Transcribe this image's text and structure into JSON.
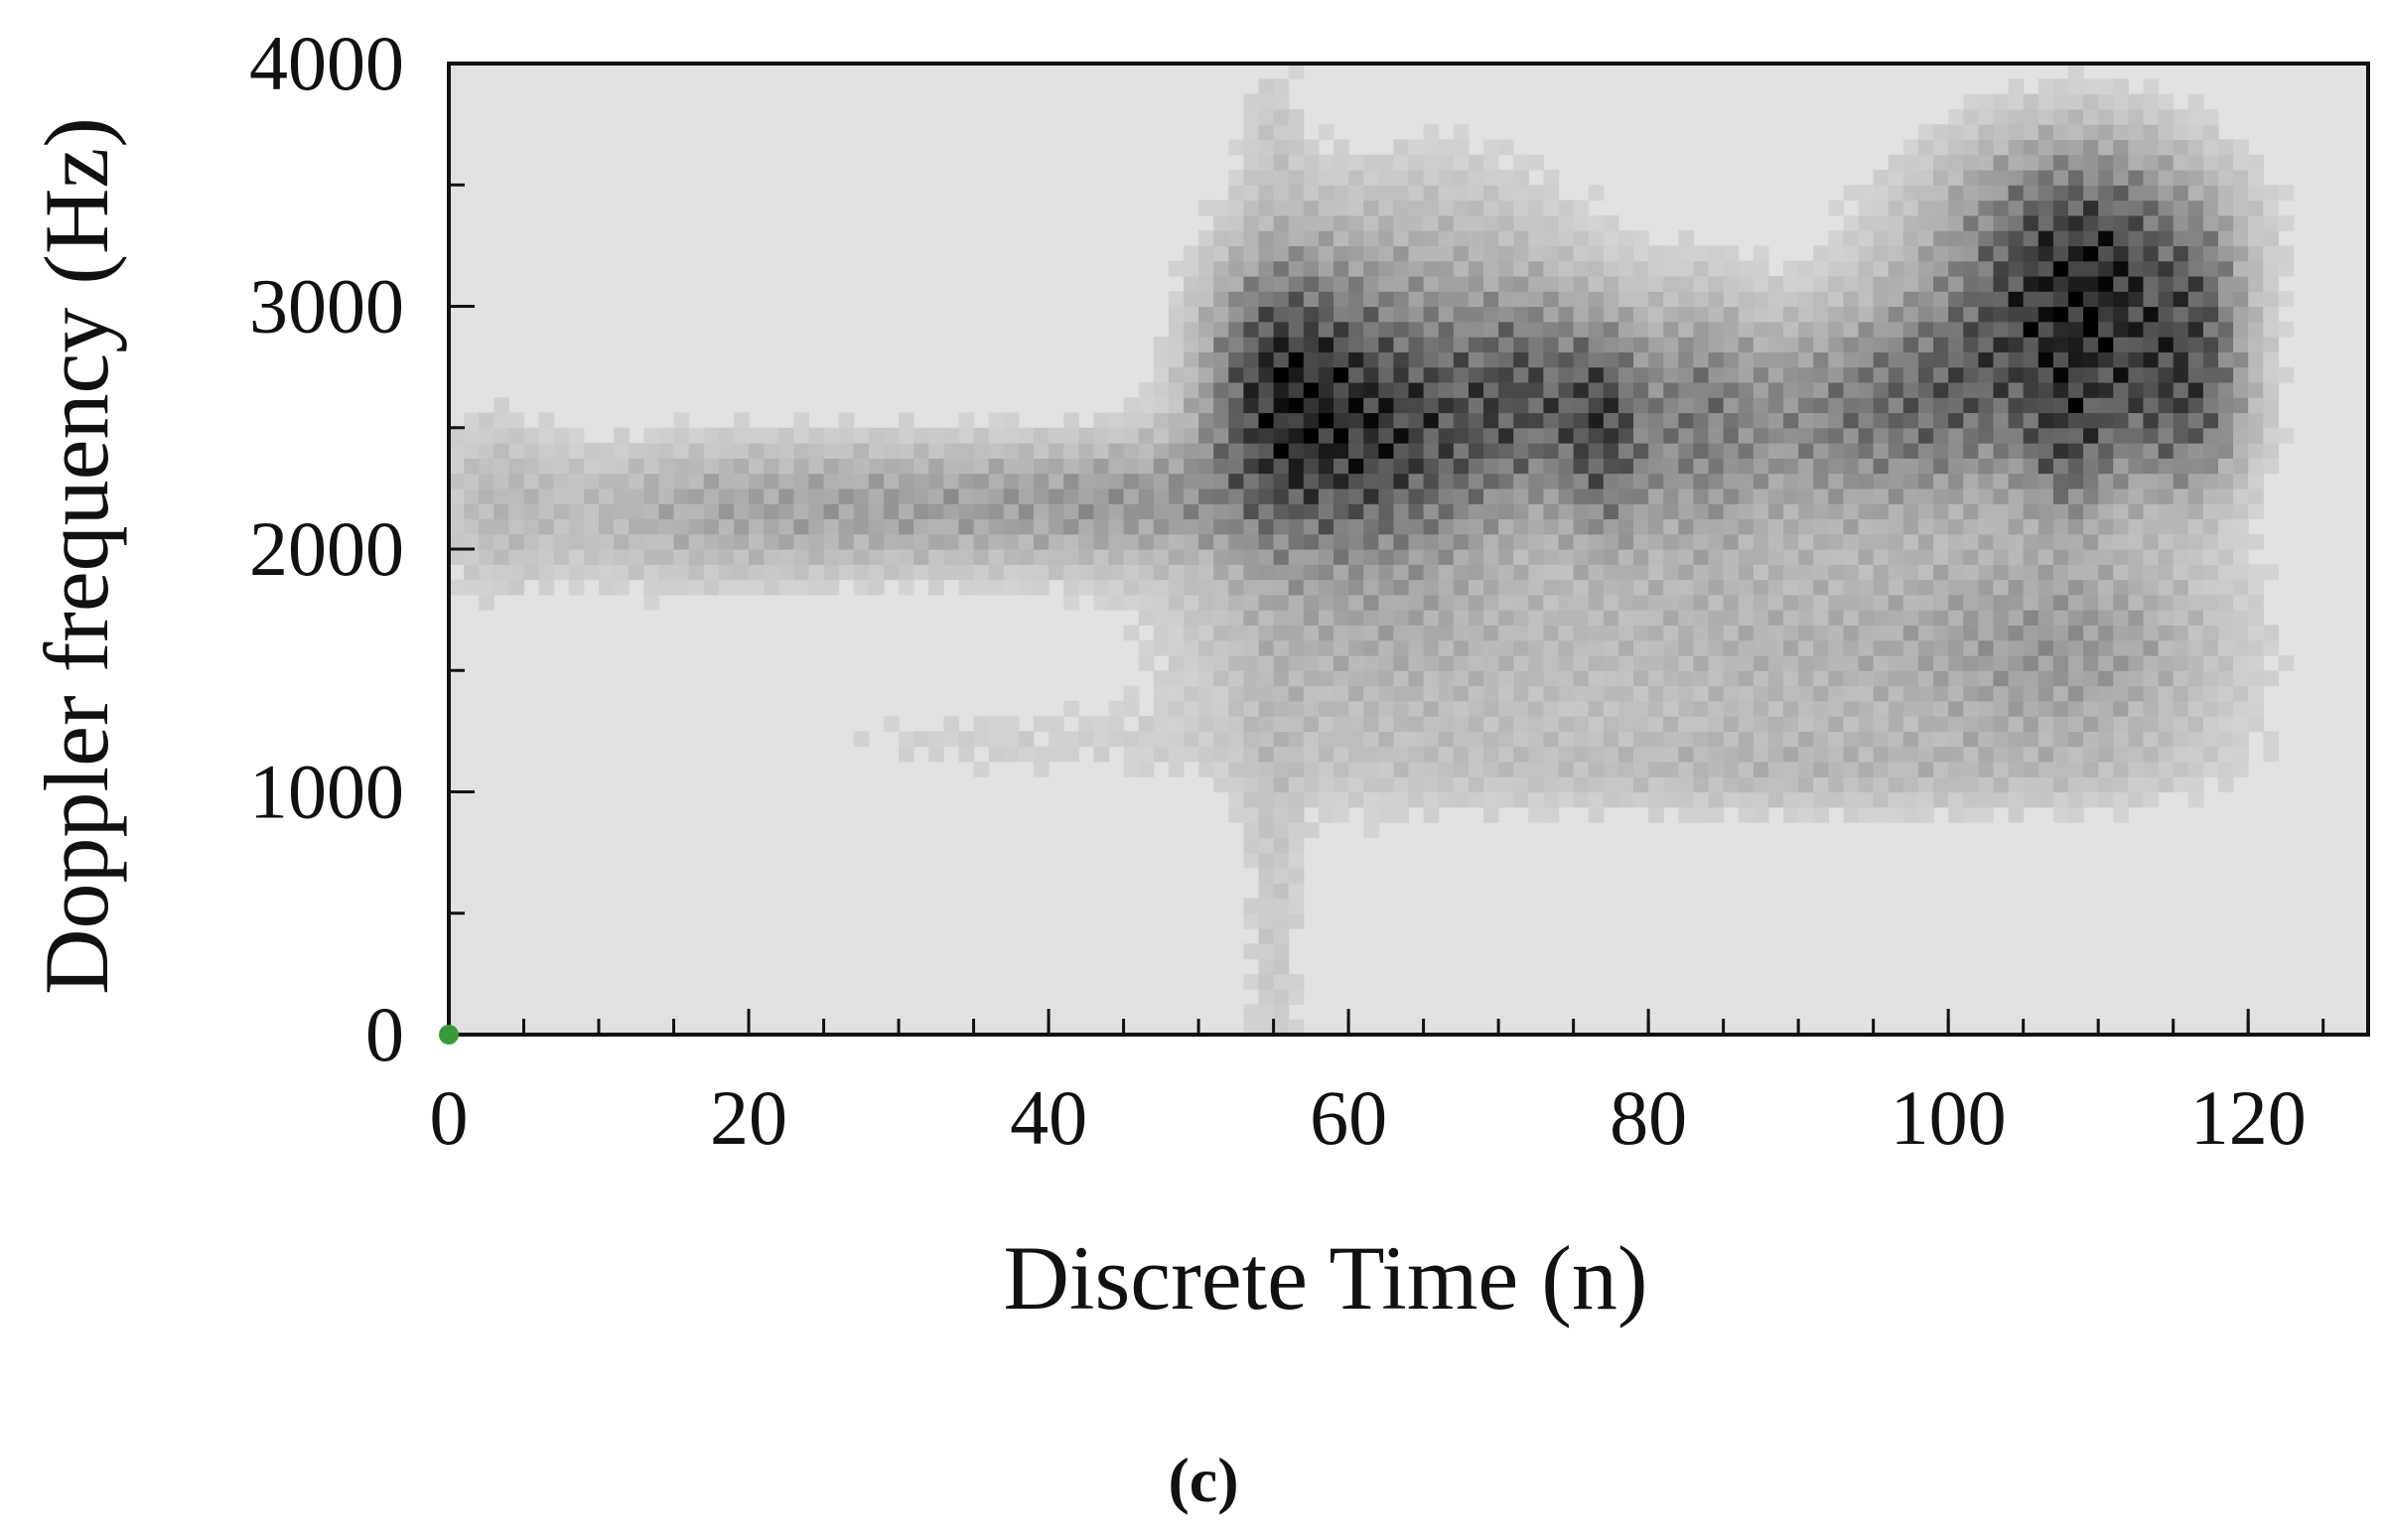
{
  "chart_data": {
    "type": "heatmap",
    "xlabel": "Discrete Time (n)",
    "ylabel": "Doppler frequency (Hz)",
    "caption": "(c)",
    "xlim": [
      0,
      128
    ],
    "ylim": [
      0,
      4000
    ],
    "x_ticks": [
      0,
      20,
      40,
      60,
      80,
      100,
      120
    ],
    "y_ticks": [
      0,
      1000,
      2000,
      3000,
      4000
    ],
    "x_minor_tick_step": 5,
    "y_minor_tick_step": 500,
    "grid": false,
    "colormap": "gray_reversed",
    "background_color": "#e1e1e1",
    "marker": {
      "x": 0,
      "y": 0,
      "color": "#3a9a3a"
    },
    "blobs": [
      {
        "x": 3,
        "y": 2200,
        "sx": 3,
        "sy": 300,
        "intensity": 0.18
      },
      {
        "x": 14,
        "y": 2150,
        "sx": 7,
        "sy": 220,
        "intensity": 0.22
      },
      {
        "x": 26,
        "y": 2180,
        "sx": 8,
        "sy": 200,
        "intensity": 0.25
      },
      {
        "x": 38,
        "y": 2180,
        "sx": 8,
        "sy": 190,
        "intensity": 0.25
      },
      {
        "x": 47,
        "y": 2220,
        "sx": 6,
        "sy": 180,
        "intensity": 0.22
      },
      {
        "x": 55,
        "y": 2700,
        "sx": 3,
        "sy": 350,
        "intensity": 0.55
      },
      {
        "x": 58,
        "y": 2550,
        "sx": 5,
        "sy": 380,
        "intensity": 0.6
      },
      {
        "x": 65,
        "y": 2500,
        "sx": 5,
        "sy": 320,
        "intensity": 0.62
      },
      {
        "x": 72,
        "y": 2650,
        "sx": 3,
        "sy": 280,
        "intensity": 0.55
      },
      {
        "x": 77,
        "y": 2500,
        "sx": 2,
        "sy": 300,
        "intensity": 0.72
      },
      {
        "x": 83,
        "y": 2550,
        "sx": 3,
        "sy": 350,
        "intensity": 0.5
      },
      {
        "x": 92,
        "y": 2550,
        "sx": 5,
        "sy": 300,
        "intensity": 0.5
      },
      {
        "x": 100,
        "y": 2650,
        "sx": 4,
        "sy": 300,
        "intensity": 0.5
      },
      {
        "x": 109,
        "y": 2950,
        "sx": 5,
        "sy": 380,
        "intensity": 1.0
      },
      {
        "x": 108,
        "y": 2400,
        "sx": 2,
        "sy": 200,
        "intensity": 0.45
      },
      {
        "x": 116,
        "y": 2550,
        "sx": 3,
        "sy": 250,
        "intensity": 0.55
      },
      {
        "x": 117,
        "y": 3000,
        "sx": 2,
        "sy": 250,
        "intensity": 0.35
      },
      {
        "x": 62,
        "y": 1650,
        "sx": 10,
        "sy": 450,
        "intensity": 0.28
      },
      {
        "x": 88,
        "y": 1600,
        "sx": 10,
        "sy": 400,
        "intensity": 0.25
      },
      {
        "x": 108,
        "y": 1600,
        "sx": 8,
        "sy": 350,
        "intensity": 0.4
      },
      {
        "x": 65,
        "y": 3200,
        "sx": 8,
        "sy": 350,
        "intensity": 0.22
      },
      {
        "x": 108,
        "y": 3350,
        "sx": 8,
        "sy": 300,
        "intensity": 0.35
      },
      {
        "x": 55,
        "y": 400,
        "sx": 1.5,
        "sy": 800,
        "intensity": 0.14
      },
      {
        "x": 55,
        "y": 3750,
        "sx": 1.5,
        "sy": 250,
        "intensity": 0.12
      },
      {
        "x": 35,
        "y": 1200,
        "sx": 10,
        "sy": 120,
        "intensity": 0.1
      },
      {
        "x": 90,
        "y": 1100,
        "sx": 18,
        "sy": 120,
        "intensity": 0.14
      }
    ]
  }
}
